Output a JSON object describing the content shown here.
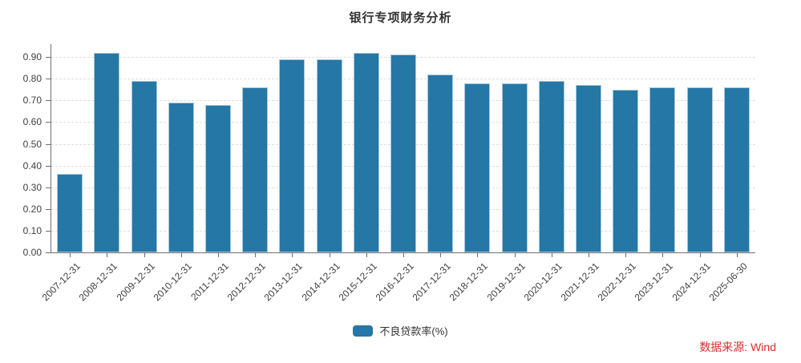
{
  "title": "银行专项财务分析",
  "legend": {
    "label": "不良贷款率(%)"
  },
  "source": {
    "label": "数据来源: Wind"
  },
  "colors": {
    "bar_fill": "#2577a5",
    "bar_border": "#a9c8dc",
    "axis": "#707070",
    "gridline": "#dedede",
    "tick_text": "#404040",
    "title_text": "#333333",
    "source_text": "#e02b2b"
  },
  "chart_data": {
    "type": "bar",
    "title": "银行专项财务分析",
    "categories": [
      "2007-12-31",
      "2008-12-31",
      "2009-12-31",
      "2010-12-31",
      "2011-12-31",
      "2012-12-31",
      "2013-12-31",
      "2014-12-31",
      "2015-12-31",
      "2016-12-31",
      "2017-12-31",
      "2018-12-31",
      "2019-12-31",
      "2020-12-31",
      "2021-12-31",
      "2022-12-31",
      "2023-12-31",
      "2024-12-31",
      "2025-06-30"
    ],
    "series": [
      {
        "name": "不良贷款率(%)",
        "values": [
          0.36,
          0.92,
          0.79,
          0.69,
          0.68,
          0.76,
          0.89,
          0.89,
          0.92,
          0.91,
          0.82,
          0.78,
          0.78,
          0.79,
          0.77,
          0.75,
          0.76,
          0.76,
          0.76
        ]
      }
    ],
    "xlabel": "",
    "ylabel": "",
    "ylim": [
      0,
      0.96
    ],
    "yticks": [
      "0.00",
      "0.10",
      "0.20",
      "0.30",
      "0.40",
      "0.50",
      "0.60",
      "0.70",
      "0.80",
      "0.90"
    ],
    "grid": "horizontal-dashed",
    "legend_position": "bottom-center",
    "x_label_rotation": 45
  }
}
